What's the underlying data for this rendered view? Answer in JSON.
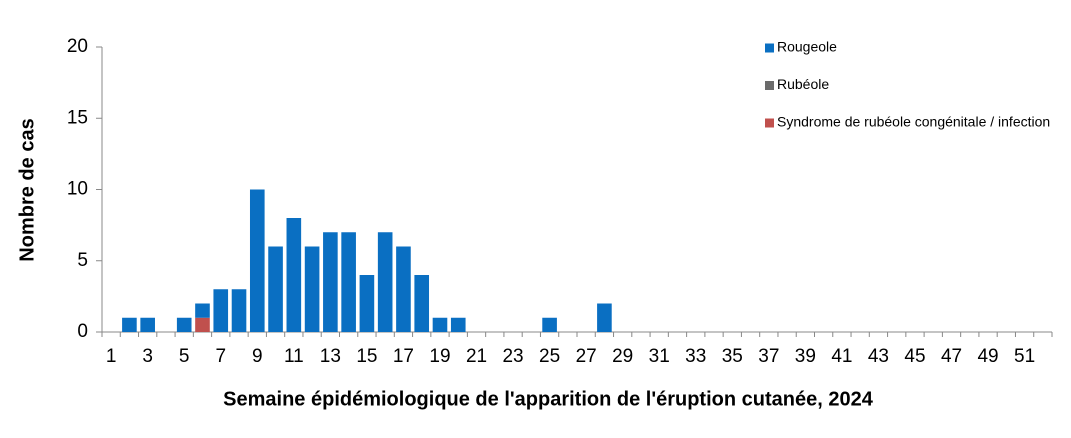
{
  "chart_data": {
    "type": "stacked_bar",
    "y_label": "Nombre de cas",
    "x_label": "Semaine épidémiologique de l'apparition de l'éruption cutanée, 2024",
    "categories": [
      "1",
      null,
      "3",
      null,
      "5",
      null,
      "7",
      null,
      "9",
      null,
      "11",
      null,
      "13",
      null,
      "15",
      null,
      "17",
      null,
      "19",
      null,
      "21",
      null,
      "23",
      null,
      "25",
      null,
      "27",
      null,
      "29",
      null,
      "31",
      null,
      "33",
      null,
      "35",
      null,
      "37",
      null,
      "39",
      null,
      "41",
      null,
      "43",
      null,
      "45",
      null,
      "47",
      null,
      "49",
      null,
      "51",
      null
    ],
    "series": [
      {
        "name": "Rougeole",
        "color": "#0a6fc2",
        "values": [
          0,
          1,
          1,
          0,
          1,
          1,
          3,
          3,
          10,
          6,
          8,
          6,
          7,
          7,
          4,
          7,
          6,
          4,
          1,
          1,
          0,
          0,
          0,
          0,
          1,
          0,
          0,
          2,
          0,
          0,
          0,
          0,
          0,
          0,
          0,
          0,
          0,
          0,
          0,
          0,
          0,
          0,
          0,
          0,
          0,
          0,
          0,
          0,
          0,
          0,
          0,
          0
        ]
      },
      {
        "name": "Rubéole",
        "color": "#6b6b6b",
        "values": [
          0,
          0,
          0,
          0,
          0,
          0,
          0,
          0,
          0,
          0,
          0,
          0,
          0,
          0,
          0,
          0,
          0,
          0,
          0,
          0,
          0,
          0,
          0,
          0,
          0,
          0,
          0,
          0,
          0,
          0,
          0,
          0,
          0,
          0,
          0,
          0,
          0,
          0,
          0,
          0,
          0,
          0,
          0,
          0,
          0,
          0,
          0,
          0,
          0,
          0,
          0,
          0
        ]
      },
      {
        "name": "Syndrome de rubéole congénitale / infection",
        "color": "#c0504d",
        "values": [
          0,
          0,
          0,
          0,
          0,
          1,
          0,
          0,
          0,
          0,
          0,
          0,
          0,
          0,
          0,
          0,
          0,
          0,
          0,
          0,
          0,
          0,
          0,
          0,
          0,
          0,
          0,
          0,
          0,
          0,
          0,
          0,
          0,
          0,
          0,
          0,
          0,
          0,
          0,
          0,
          0,
          0,
          0,
          0,
          0,
          0,
          0,
          0,
          0,
          0,
          0,
          0
        ]
      }
    ],
    "ylim": [
      0,
      20
    ],
    "yticks": [
      0,
      5,
      10,
      15,
      20
    ],
    "grid": false,
    "legend": "top-right"
  }
}
